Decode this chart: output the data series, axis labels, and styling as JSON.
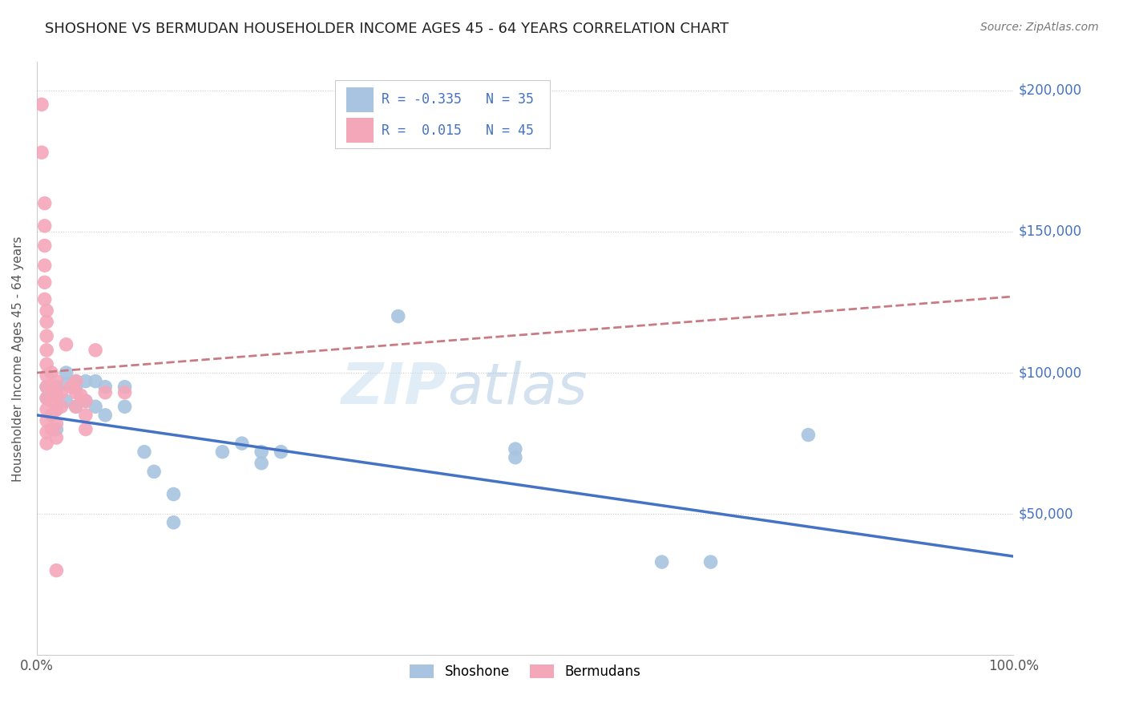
{
  "title": "SHOSHONE VS BERMUDAN HOUSEHOLDER INCOME AGES 45 - 64 YEARS CORRELATION CHART",
  "source_text": "Source: ZipAtlas.com",
  "ylabel": "Householder Income Ages 45 - 64 years",
  "xlim": [
    0.0,
    1.0
  ],
  "ylim": [
    0,
    210000
  ],
  "xtick_labels": [
    "0.0%",
    "100.0%"
  ],
  "ytick_positions": [
    50000,
    100000,
    150000,
    200000
  ],
  "ytick_labels": [
    "$50,000",
    "$100,000",
    "$150,000",
    "$200,000"
  ],
  "shoshone_R": -0.335,
  "shoshone_N": 35,
  "bermuda_R": 0.015,
  "bermuda_N": 45,
  "shoshone_color": "#a8c4e0",
  "bermuda_color": "#f4a7b9",
  "shoshone_line_color": "#4472c4",
  "bermuda_line_color": "#c97b84",
  "shoshone_points": [
    [
      0.01,
      95000
    ],
    [
      0.01,
      91000
    ],
    [
      0.02,
      93000
    ],
    [
      0.02,
      87000
    ],
    [
      0.02,
      80000
    ],
    [
      0.02,
      95000
    ],
    [
      0.03,
      100000
    ],
    [
      0.03,
      96000
    ],
    [
      0.03,
      90000
    ],
    [
      0.04,
      97000
    ],
    [
      0.04,
      95000
    ],
    [
      0.04,
      88000
    ],
    [
      0.05,
      97000
    ],
    [
      0.05,
      90000
    ],
    [
      0.06,
      97000
    ],
    [
      0.06,
      88000
    ],
    [
      0.07,
      95000
    ],
    [
      0.07,
      85000
    ],
    [
      0.09,
      95000
    ],
    [
      0.09,
      88000
    ],
    [
      0.11,
      72000
    ],
    [
      0.12,
      65000
    ],
    [
      0.14,
      57000
    ],
    [
      0.14,
      47000
    ],
    [
      0.19,
      72000
    ],
    [
      0.21,
      75000
    ],
    [
      0.23,
      72000
    ],
    [
      0.23,
      68000
    ],
    [
      0.25,
      72000
    ],
    [
      0.37,
      120000
    ],
    [
      0.49,
      73000
    ],
    [
      0.49,
      70000
    ],
    [
      0.79,
      78000
    ],
    [
      0.64,
      33000
    ],
    [
      0.69,
      33000
    ]
  ],
  "bermuda_points": [
    [
      0.005,
      195000
    ],
    [
      0.005,
      178000
    ],
    [
      0.008,
      160000
    ],
    [
      0.008,
      152000
    ],
    [
      0.008,
      145000
    ],
    [
      0.008,
      138000
    ],
    [
      0.008,
      132000
    ],
    [
      0.008,
      126000
    ],
    [
      0.01,
      122000
    ],
    [
      0.01,
      118000
    ],
    [
      0.01,
      113000
    ],
    [
      0.01,
      108000
    ],
    [
      0.01,
      103000
    ],
    [
      0.01,
      99000
    ],
    [
      0.01,
      95000
    ],
    [
      0.01,
      91000
    ],
    [
      0.01,
      87000
    ],
    [
      0.01,
      83000
    ],
    [
      0.01,
      79000
    ],
    [
      0.01,
      75000
    ],
    [
      0.015,
      100000
    ],
    [
      0.015,
      95000
    ],
    [
      0.015,
      90000
    ],
    [
      0.015,
      85000
    ],
    [
      0.015,
      80000
    ],
    [
      0.02,
      97000
    ],
    [
      0.02,
      92000
    ],
    [
      0.02,
      87000
    ],
    [
      0.02,
      82000
    ],
    [
      0.02,
      77000
    ],
    [
      0.02,
      30000
    ],
    [
      0.025,
      93000
    ],
    [
      0.025,
      88000
    ],
    [
      0.03,
      110000
    ],
    [
      0.035,
      95000
    ],
    [
      0.04,
      97000
    ],
    [
      0.04,
      93000
    ],
    [
      0.04,
      88000
    ],
    [
      0.045,
      92000
    ],
    [
      0.05,
      90000
    ],
    [
      0.05,
      85000
    ],
    [
      0.05,
      80000
    ],
    [
      0.06,
      108000
    ],
    [
      0.07,
      93000
    ],
    [
      0.09,
      93000
    ]
  ]
}
